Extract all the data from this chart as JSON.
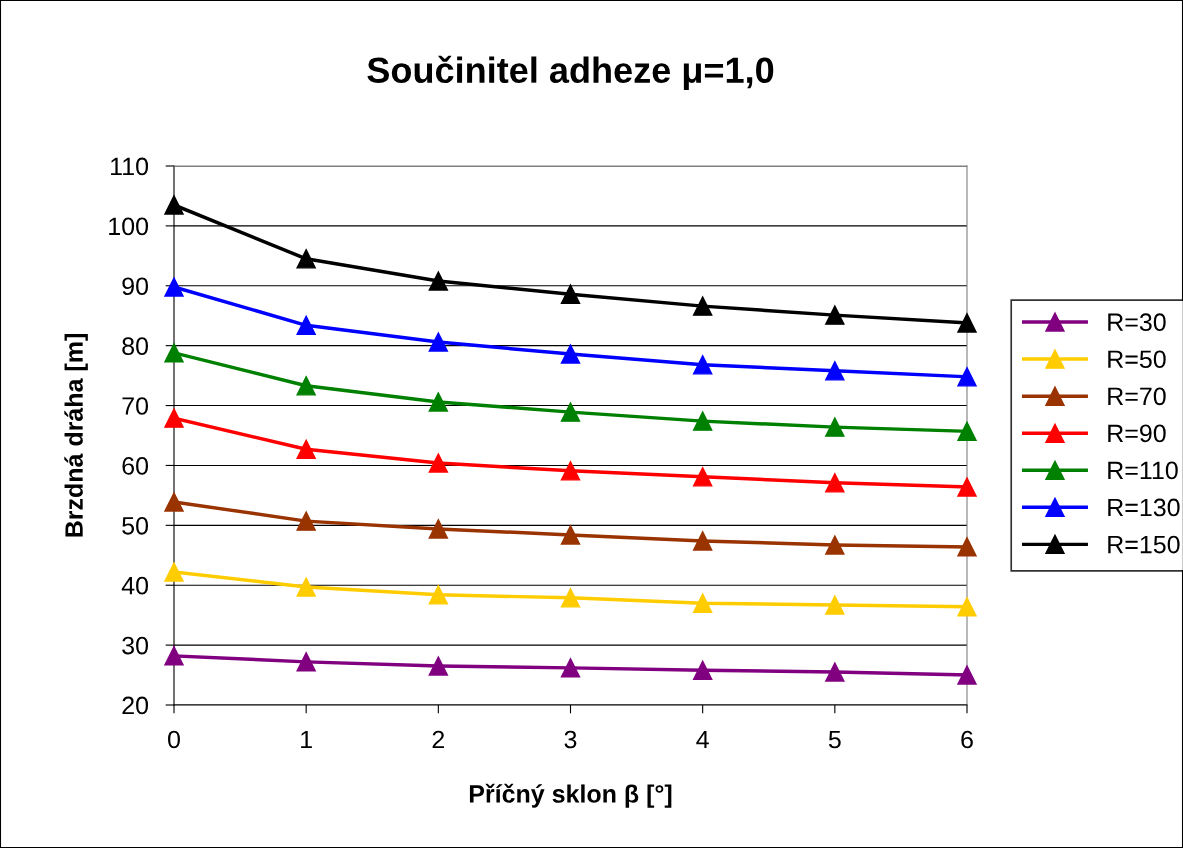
{
  "chart_data": {
    "type": "line",
    "title": "Součinitel adheze μ=1,0",
    "xlabel": "Příčný sklon β [°]",
    "ylabel": "Brzdná dráha [m]",
    "x": [
      0,
      1,
      2,
      3,
      4,
      5,
      6
    ],
    "xlim": [
      0,
      6
    ],
    "xticks": [
      0,
      1,
      2,
      3,
      4,
      5,
      6
    ],
    "ylim": [
      20,
      110
    ],
    "yticks": [
      20,
      30,
      40,
      50,
      60,
      70,
      80,
      90,
      100,
      110
    ],
    "grid": "y",
    "legend": "right",
    "marker": "triangle",
    "line_style": "solid",
    "series": [
      {
        "name": "R=30",
        "color": "#800080",
        "values": [
          28.2,
          27.2,
          26.5,
          26.2,
          25.8,
          25.5,
          25.0
        ]
      },
      {
        "name": "R=50",
        "color": "#ffcc00",
        "values": [
          42.2,
          39.7,
          38.4,
          37.9,
          37.0,
          36.7,
          36.4
        ]
      },
      {
        "name": "R=70",
        "color": "#993300",
        "values": [
          53.9,
          50.7,
          49.4,
          48.4,
          47.4,
          46.7,
          46.4
        ]
      },
      {
        "name": "R=90",
        "color": "#ff0000",
        "values": [
          67.9,
          62.7,
          60.4,
          59.1,
          58.1,
          57.1,
          56.4
        ]
      },
      {
        "name": "R=110",
        "color": "#008000",
        "values": [
          78.8,
          73.3,
          70.6,
          68.9,
          67.4,
          66.4,
          65.7
        ]
      },
      {
        "name": "R=130",
        "color": "#0000ff",
        "values": [
          89.8,
          83.4,
          80.6,
          78.6,
          76.8,
          75.8,
          74.8
        ]
      },
      {
        "name": "R=150",
        "color": "#000000",
        "values": [
          103.5,
          94.5,
          90.8,
          88.6,
          86.6,
          85.1,
          83.8
        ]
      }
    ]
  }
}
